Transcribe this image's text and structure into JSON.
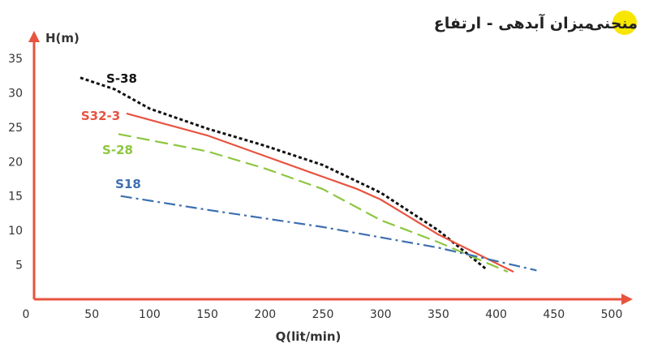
{
  "title": {
    "highlight": "منحنی",
    "rest": "میزان آبدهی - ارتفاع",
    "highlight_color": "#f7e600"
  },
  "chart_data": {
    "type": "line",
    "xlabel": "Q(lit/min)",
    "ylabel": "H(m)",
    "xlim": [
      0,
      500
    ],
    "ylim": [
      0,
      35
    ],
    "x_ticks": [
      0,
      50,
      100,
      150,
      200,
      250,
      300,
      350,
      400,
      450,
      500
    ],
    "y_ticks": [
      5,
      10,
      15,
      20,
      25,
      30,
      35
    ],
    "origin_label": "0",
    "axis_color": "#e8533f",
    "grid": false,
    "legend": "inline labels",
    "series": [
      {
        "name": "S-38",
        "color": "#111111",
        "dash": "dotted",
        "points": [
          [
            40,
            32.2
          ],
          [
            70,
            30.5
          ],
          [
            100,
            27.7
          ],
          [
            150,
            24.8
          ],
          [
            200,
            22.3
          ],
          [
            250,
            19.5
          ],
          [
            300,
            15.5
          ],
          [
            350,
            10.0
          ],
          [
            392,
            4.3
          ]
        ]
      },
      {
        "name": "S32-3",
        "color": "#e8533f",
        "dash": "solid",
        "points": [
          [
            80,
            27.0
          ],
          [
            150,
            23.8
          ],
          [
            200,
            20.8
          ],
          [
            250,
            17.8
          ],
          [
            280,
            16.0
          ],
          [
            300,
            14.5
          ],
          [
            350,
            9.4
          ],
          [
            415,
            4.0
          ]
        ]
      },
      {
        "name": "S-28",
        "color": "#8cc63f",
        "dash": "dashed",
        "points": [
          [
            73,
            24.0
          ],
          [
            150,
            21.5
          ],
          [
            200,
            19.0
          ],
          [
            250,
            16.0
          ],
          [
            300,
            11.5
          ],
          [
            350,
            8.3
          ],
          [
            410,
            4.0
          ]
        ]
      },
      {
        "name": "S18",
        "color": "#3d6fb0",
        "dash": "dashdot",
        "points": [
          [
            75,
            15.0
          ],
          [
            150,
            13.0
          ],
          [
            250,
            10.5
          ],
          [
            350,
            7.5
          ],
          [
            435,
            4.2
          ]
        ]
      }
    ]
  }
}
